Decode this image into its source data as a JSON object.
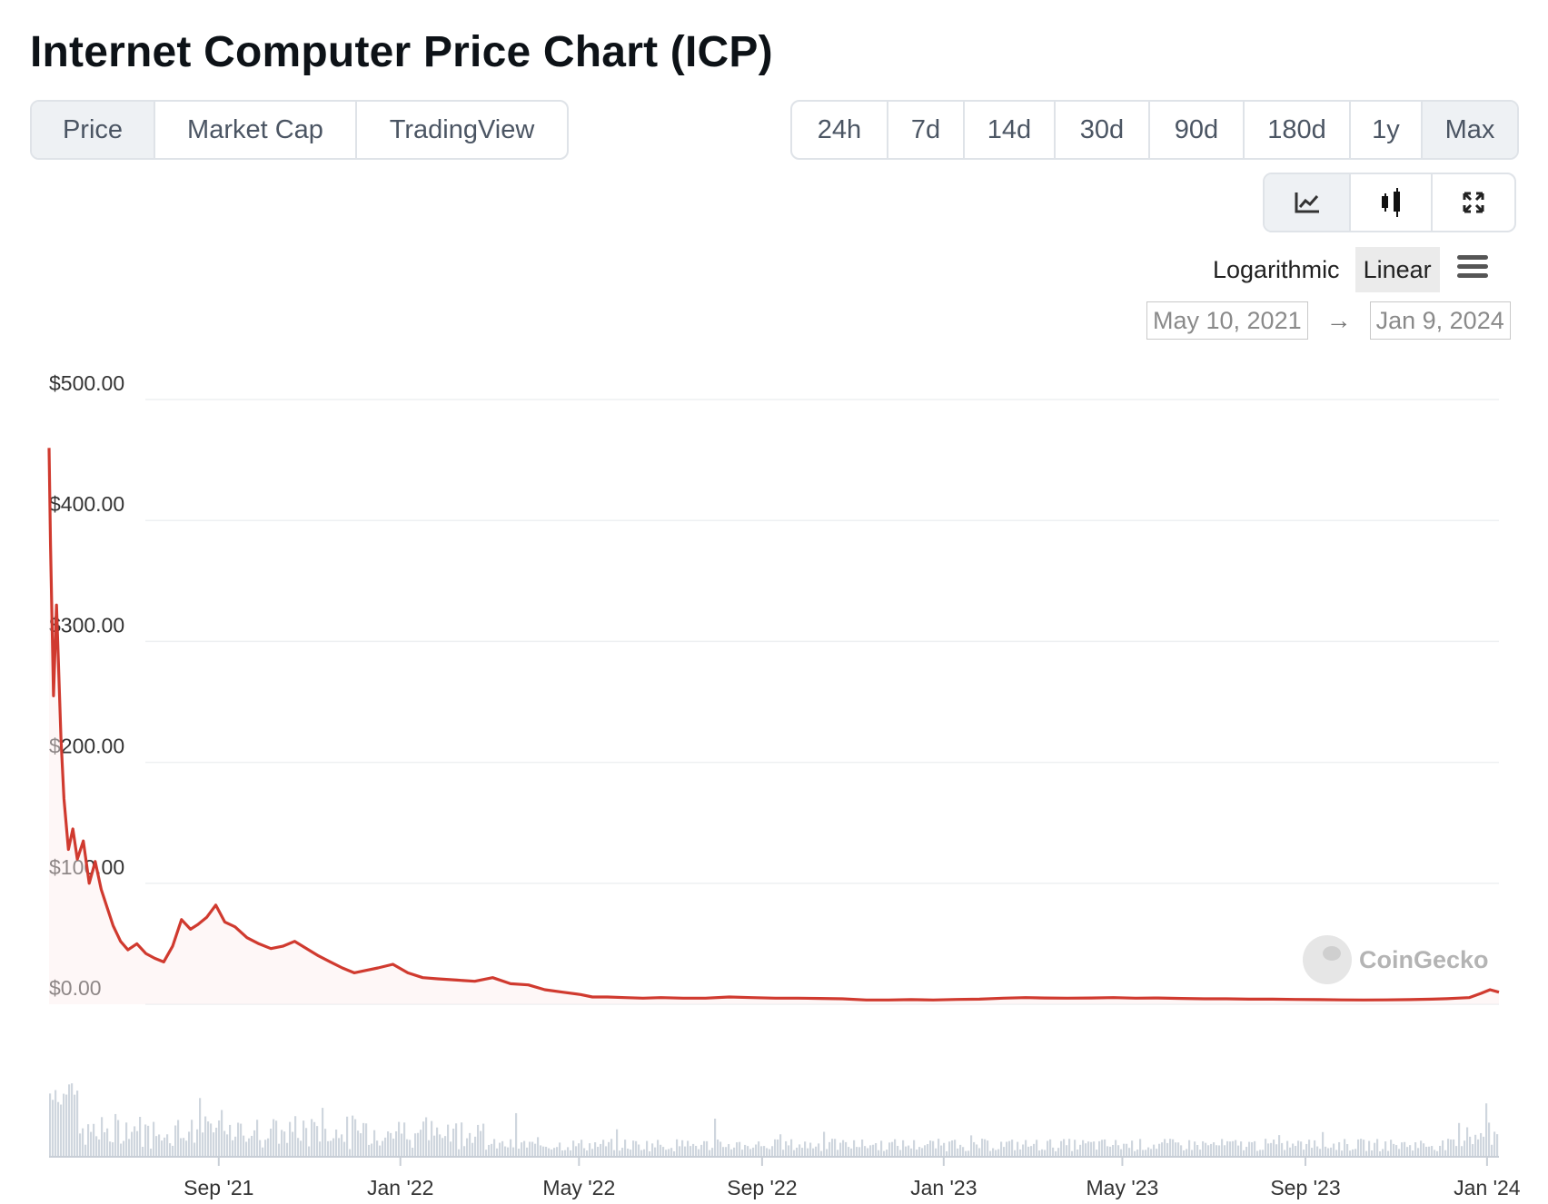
{
  "title": "Internet Computer Price Chart (ICP)",
  "tabs": [
    {
      "label": "Price",
      "active": true
    },
    {
      "label": "Market Cap",
      "active": false
    },
    {
      "label": "TradingView",
      "active": false
    }
  ],
  "ranges": [
    {
      "label": "24h",
      "active": false
    },
    {
      "label": "7d",
      "active": false
    },
    {
      "label": "14d",
      "active": false
    },
    {
      "label": "30d",
      "active": false
    },
    {
      "label": "90d",
      "active": false
    },
    {
      "label": "180d",
      "active": false
    },
    {
      "label": "1y",
      "active": false
    },
    {
      "label": "Max",
      "active": true
    }
  ],
  "chart_types": [
    {
      "icon": "line-chart-icon",
      "active": true
    },
    {
      "icon": "candlestick-icon",
      "active": false
    },
    {
      "icon": "expand-icon",
      "active": false
    }
  ],
  "scale": {
    "logarithmic": "Logarithmic",
    "linear": "Linear",
    "active": "linear"
  },
  "date_range": {
    "from": "May 10, 2021",
    "to": "Jan 9, 2024",
    "arrow": "→"
  },
  "watermark": "CoinGecko",
  "colors": {
    "line": "#d03a2f",
    "volume": "#cfd6de",
    "grid": "#eef0f2"
  },
  "chart_data": {
    "type": "line",
    "series": [
      {
        "x": [
          "2021-05-10",
          "2021-05-11",
          "2021-05-13",
          "2021-05-15",
          "2021-05-18",
          "2021-05-20",
          "2021-05-23",
          "2021-05-26",
          "2021-05-29",
          "2021-06-02",
          "2021-06-06",
          "2021-06-10",
          "2021-06-14",
          "2021-06-18",
          "2021-06-22",
          "2021-06-27",
          "2021-07-02",
          "2021-07-08",
          "2021-07-14",
          "2021-07-20",
          "2021-07-26",
          "2021-08-01",
          "2021-08-07",
          "2021-08-13",
          "2021-08-18",
          "2021-08-24",
          "2021-08-30",
          "2021-09-05",
          "2021-09-12",
          "2021-09-20",
          "2021-09-28",
          "2021-10-06",
          "2021-10-14",
          "2021-10-22",
          "2021-10-30",
          "2021-11-07",
          "2021-11-15",
          "2021-11-23",
          "2021-12-01",
          "2021-12-09",
          "2021-12-17",
          "2021-12-27",
          "2022-01-06",
          "2022-01-16",
          "2022-01-26",
          "2022-02-08",
          "2022-02-20",
          "2022-03-04",
          "2022-03-16",
          "2022-03-28",
          "2022-04-08",
          "2022-04-20",
          "2022-05-02",
          "2022-05-10",
          "2022-05-20",
          "2022-06-01",
          "2022-06-13",
          "2022-06-25",
          "2022-07-10",
          "2022-07-25",
          "2022-08-10",
          "2022-08-25",
          "2022-09-10",
          "2022-09-25",
          "2022-10-10",
          "2022-10-25",
          "2022-11-10",
          "2022-11-25",
          "2022-12-10",
          "2022-12-25",
          "2023-01-10",
          "2023-01-25",
          "2023-02-10",
          "2023-02-25",
          "2023-03-10",
          "2023-03-25",
          "2023-04-10",
          "2023-04-25",
          "2023-05-10",
          "2023-05-25",
          "2023-06-10",
          "2023-06-25",
          "2023-07-10",
          "2023-07-25",
          "2023-08-10",
          "2023-08-25",
          "2023-09-10",
          "2023-09-25",
          "2023-10-10",
          "2023-10-25",
          "2023-11-10",
          "2023-11-25",
          "2023-12-05",
          "2023-12-12",
          "2023-12-20",
          "2023-12-28",
          "2024-01-03",
          "2024-01-09"
        ],
        "y": [
          460,
          380,
          255,
          330,
          220,
          170,
          128,
          145,
          120,
          135,
          100,
          118,
          95,
          80,
          65,
          52,
          45,
          50,
          42,
          38,
          35,
          48,
          70,
          62,
          66,
          72,
          82,
          68,
          64,
          55,
          50,
          46,
          48,
          52,
          46,
          40,
          35,
          30,
          26,
          28,
          30,
          33,
          26,
          22,
          21,
          20,
          19,
          22,
          17,
          16,
          12,
          10,
          8,
          6,
          6,
          5.5,
          5,
          5.5,
          5,
          5,
          6,
          5.5,
          5,
          5,
          4.8,
          4.5,
          3.5,
          3.5,
          3.8,
          3.5,
          4,
          4.2,
          5,
          5.5,
          5.2,
          5,
          5.2,
          5.5,
          5,
          5.2,
          4.8,
          4.5,
          4.5,
          4.2,
          4.2,
          4,
          3.8,
          3.6,
          3.5,
          3.6,
          3.8,
          4.2,
          4.6,
          5,
          5.5,
          9,
          12,
          10
        ]
      }
    ],
    "ylim": [
      0,
      500
    ],
    "yticks": [
      "$0.00",
      "$100.00",
      "$200.00",
      "$300.00",
      "$400.00",
      "$500.00"
    ],
    "ytick_values": [
      0,
      100,
      200,
      300,
      400,
      500
    ],
    "xticks": [
      "Sep '21",
      "Jan '22",
      "May '22",
      "Sep '22",
      "Jan '23",
      "May '23",
      "Sep '23",
      "Jan '24"
    ],
    "xtick_dates": [
      "2021-09-01",
      "2022-01-01",
      "2022-05-01",
      "2022-09-01",
      "2023-01-01",
      "2023-05-01",
      "2023-09-01",
      "2024-01-01"
    ],
    "xlim": [
      "2021-05-10",
      "2024-01-09"
    ],
    "grid": true,
    "volume_chart": true
  }
}
